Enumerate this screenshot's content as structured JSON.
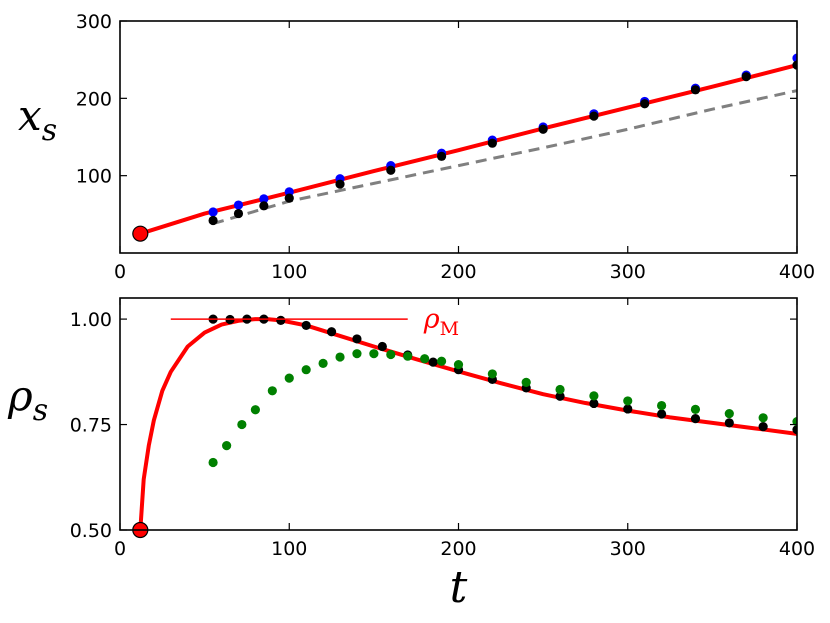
{
  "chart_data": [
    {
      "type": "line",
      "ylabel_main": "x",
      "ylabel_sub": "s",
      "xlim": [
        0,
        400
      ],
      "ylim": [
        0,
        300
      ],
      "xticks": [
        "0",
        "100",
        "200",
        "300",
        "400"
      ],
      "yticks": [
        "100",
        "200",
        "300"
      ],
      "grid": false,
      "series": [
        {
          "style": "solid",
          "color": "#ff0000",
          "x": [
            12,
            50,
            100,
            150,
            200,
            250,
            300,
            350,
            400
          ],
          "y": [
            25,
            51,
            78,
            106,
            133,
            161,
            188,
            215,
            243
          ]
        },
        {
          "style": "dashed",
          "color": "#808080",
          "x": [
            55,
            100,
            150,
            200,
            250,
            300,
            350,
            400
          ],
          "y": [
            38,
            67,
            90,
            113,
            136,
            160,
            186,
            210
          ]
        },
        {
          "style": "dots",
          "color": "#0000ff",
          "x": [
            55,
            70,
            85,
            100,
            130,
            160,
            190,
            220,
            250,
            280,
            310,
            340,
            370,
            400
          ],
          "y": [
            53,
            62,
            70,
            79,
            96,
            113,
            129,
            146,
            163,
            180,
            196,
            213,
            230,
            252
          ]
        },
        {
          "style": "dots",
          "color": "#000000",
          "x": [
            55,
            70,
            85,
            100,
            130,
            160,
            190,
            220,
            250,
            280,
            310,
            340,
            370,
            400
          ],
          "y": [
            42,
            51,
            61,
            71,
            89,
            107,
            125,
            142,
            160,
            177,
            193,
            211,
            228,
            243
          ]
        }
      ],
      "start_marker": {
        "x": 12,
        "y": 25,
        "color": "#ff0000"
      }
    },
    {
      "type": "line",
      "ylabel_main": "ρ",
      "ylabel_sub": "s",
      "xlabel": "t",
      "xlim": [
        0,
        400
      ],
      "ylim": [
        0.5,
        1.05
      ],
      "xticks": [
        "0",
        "100",
        "200",
        "300",
        "400"
      ],
      "yticks": [
        "0.50",
        "0.75",
        "1.00"
      ],
      "grid": false,
      "series": [
        {
          "style": "solid",
          "color": "#ff0000",
          "x": [
            12,
            14,
            17,
            20,
            25,
            30,
            40,
            50,
            60,
            70,
            80,
            87,
            95,
            110,
            130,
            150,
            175,
            200,
            225,
            250,
            275,
            300,
            325,
            350,
            375,
            400
          ],
          "y": [
            0.5,
            0.62,
            0.7,
            0.76,
            0.83,
            0.875,
            0.935,
            0.968,
            0.987,
            0.996,
            1.0,
            1.0,
            0.997,
            0.985,
            0.96,
            0.935,
            0.905,
            0.876,
            0.848,
            0.822,
            0.801,
            0.783,
            0.767,
            0.754,
            0.741,
            0.728
          ]
        },
        {
          "style": "dots",
          "color": "#000000",
          "x": [
            55,
            65,
            75,
            85,
            95,
            110,
            125,
            140,
            155,
            170,
            185,
            200,
            220,
            240,
            260,
            280,
            300,
            320,
            340,
            360,
            380,
            400
          ],
          "y": [
            1.0,
            0.999,
            1.0,
            1.0,
            0.997,
            0.985,
            0.97,
            0.953,
            0.935,
            0.915,
            0.898,
            0.88,
            0.857,
            0.837,
            0.817,
            0.8,
            0.787,
            0.775,
            0.764,
            0.754,
            0.745,
            0.738
          ]
        },
        {
          "style": "dots",
          "color": "#008000",
          "x": [
            55,
            63,
            72,
            80,
            90,
            100,
            110,
            120,
            130,
            140,
            150,
            160,
            170,
            180,
            190,
            200,
            220,
            240,
            260,
            280,
            300,
            320,
            340,
            360,
            380,
            400
          ],
          "y": [
            0.66,
            0.7,
            0.75,
            0.785,
            0.83,
            0.86,
            0.88,
            0.895,
            0.91,
            0.918,
            0.918,
            0.916,
            0.912,
            0.906,
            0.9,
            0.892,
            0.87,
            0.85,
            0.833,
            0.818,
            0.806,
            0.795,
            0.786,
            0.776,
            0.766,
            0.757
          ]
        }
      ],
      "reference_line": {
        "x": [
          30,
          170
        ],
        "y": 1.0,
        "color": "#ff0000",
        "label_main": "ρ",
        "label_sub": "M"
      },
      "start_marker": {
        "x": 12,
        "y": 0.5,
        "color": "#ff0000"
      }
    }
  ]
}
